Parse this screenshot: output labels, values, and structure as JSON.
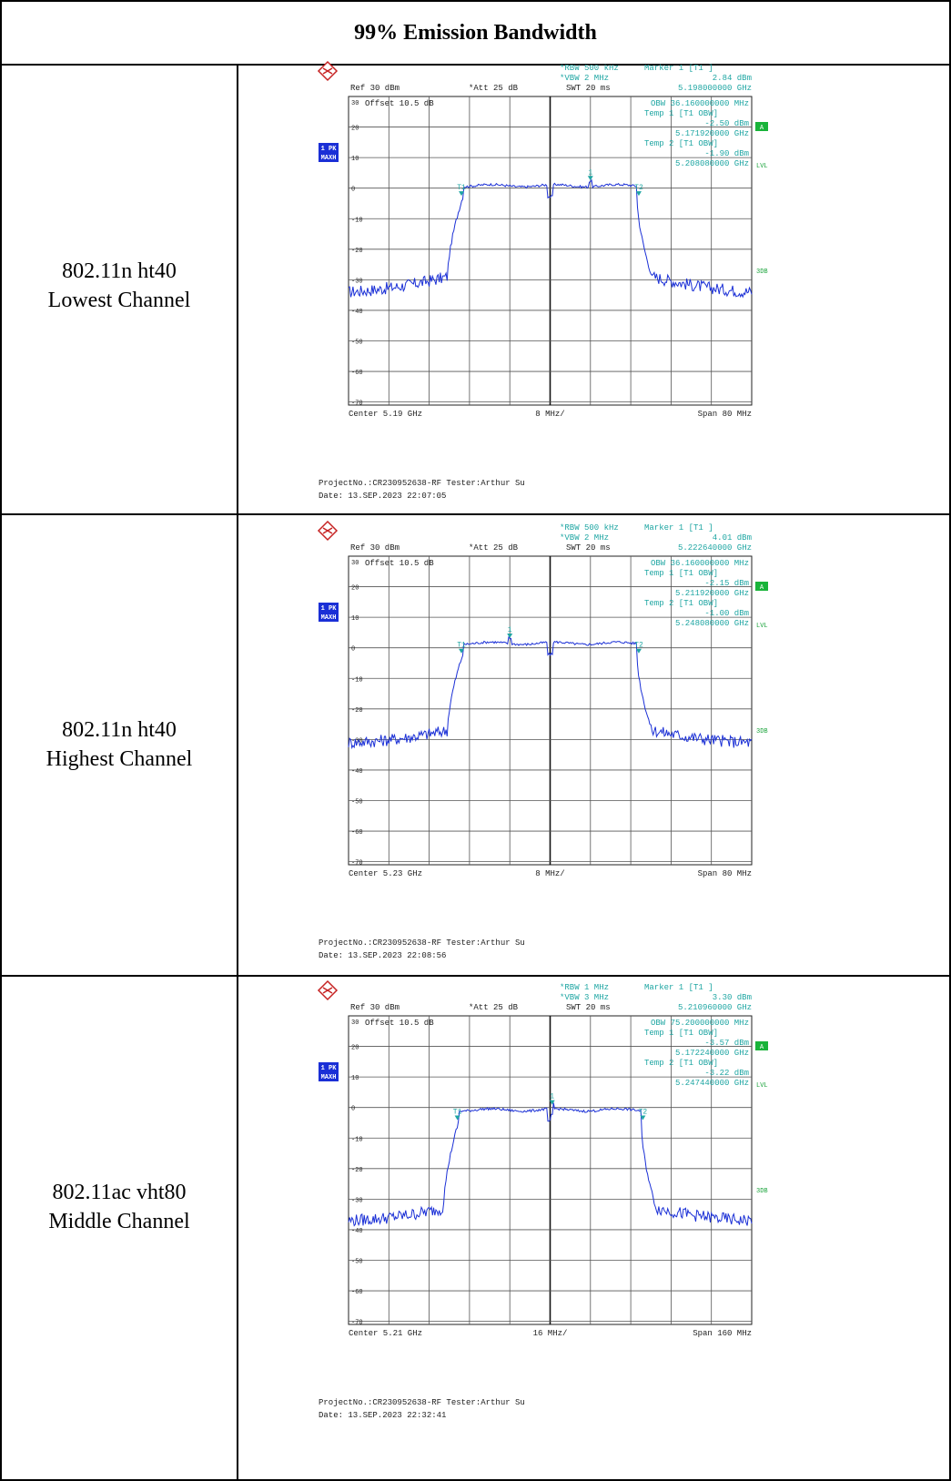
{
  "title": "99% Emission Bandwidth",
  "rows": [
    {
      "mode": "802.11n ht40",
      "channel": "Lowest Channel",
      "analyzer": {
        "rbw": "RBW 500 kHz",
        "vbw": "VBW 2 MHz",
        "swt": "SWT 20 ms",
        "ref": "Ref  30 dBm",
        "att": "Att  25 dB",
        "offset": "Offset  10.5 dB",
        "marker_title": "Marker 1 [T1 ]",
        "marker_level": "2.84 dBm",
        "marker_freq": "5.198000000 GHz",
        "obw": "OBW 36.160000000 MHz",
        "temp1_label": "Temp 1 [T1 OBW]",
        "temp1_level": "-2.50 dBm",
        "temp1_freq": "5.171920000 GHz",
        "temp2_label": "Temp 2 [T1 OBW]",
        "temp2_level": "-1.90 dBm",
        "temp2_freq": "5.208080000 GHz",
        "center": "Center  5.19 GHz",
        "div": "8 MHz/",
        "span": "Span  80 MHz",
        "project": "ProjectNo.:CR230952638-RF  Tester:Arthur Su",
        "date": "Date: 13.SEP.2023  22:07:05"
      },
      "trace": {
        "plateau_db": 0.8,
        "marker1_x_frac": 0.6,
        "t1_x_frac": 0.275,
        "t2_x_frac": 0.725,
        "skirt_db": -32,
        "edge_db": -34
      }
    },
    {
      "mode": "802.11n ht40",
      "channel": "Highest Channel",
      "analyzer": {
        "rbw": "RBW 500 kHz",
        "vbw": "VBW 2 MHz",
        "swt": "SWT 20 ms",
        "ref": "Ref  30 dBm",
        "att": "Att  25 dB",
        "offset": "Offset  10.5 dB",
        "marker_title": "Marker 1 [T1 ]",
        "marker_level": "4.01 dBm",
        "marker_freq": "5.222640000 GHz",
        "obw": "OBW 36.160000000 MHz",
        "temp1_label": "Temp 1 [T1 OBW]",
        "temp1_level": "-2.15 dBm",
        "temp1_freq": "5.211920000 GHz",
        "temp2_label": "Temp 2 [T1 OBW]",
        "temp2_level": "-1.00 dBm",
        "temp2_freq": "5.248080000 GHz",
        "center": "Center  5.23 GHz",
        "div": "8 MHz/",
        "span": "Span  80 MHz",
        "project": "ProjectNo.:CR230952638-RF  Tester:Arthur Su",
        "date": "Date: 13.SEP.2023  22:08:56"
      },
      "trace": {
        "plateau_db": 1.5,
        "marker1_x_frac": 0.4,
        "t1_x_frac": 0.275,
        "t2_x_frac": 0.725,
        "skirt_db": -30,
        "edge_db": -31
      }
    },
    {
      "mode": "802.11ac vht80",
      "channel": "Middle Channel",
      "analyzer": {
        "rbw": "RBW 1 MHz",
        "vbw": "VBW 3 MHz",
        "swt": "SWT 20 ms",
        "ref": "Ref  30 dBm",
        "att": "Att  25 dB",
        "offset": "Offset  10.5 dB",
        "marker_title": "Marker 1 [T1 ]",
        "marker_level": "3.30 dBm",
        "marker_freq": "5.210960000 GHz",
        "obw": "OBW 75.200000000 MHz",
        "temp1_label": "Temp 1 [T1 OBW]",
        "temp1_level": "-3.57 dBm",
        "temp1_freq": "5.172240000 GHz",
        "temp2_label": "Temp 2 [T1 OBW]",
        "temp2_level": "-3.22 dBm",
        "temp2_freq": "5.247440000 GHz",
        "center": "Center  5.21 GHz",
        "div": "16 MHz/",
        "span": "Span  160 MHz",
        "project": "ProjectNo.:CR230952638-RF  Tester:Arthur Su",
        "date": "Date: 13.SEP.2023  22:32:41"
      },
      "trace": {
        "plateau_db": -0.8,
        "marker1_x_frac": 0.505,
        "t1_x_frac": 0.265,
        "t2_x_frac": 0.735,
        "skirt_db": -36,
        "edge_db": -37
      }
    }
  ],
  "side_tags": {
    "a": "A",
    "lvl": "LVL",
    "db3": "3DB",
    "pk": "1 PK",
    "maxh": "MAXH",
    "t1": "T1",
    "t2": "T2",
    "m1": "1"
  },
  "y_ticks": [
    "30",
    "20",
    "10",
    "0",
    "-10",
    "-20",
    "-30",
    "-40",
    "-50",
    "-60",
    "-70"
  ],
  "colors": {
    "trace": "#1a2fd6",
    "annotation": "#1fa6a3",
    "panel_tag": "#1a2fd6",
    "a_tag": "#19b33a"
  }
}
